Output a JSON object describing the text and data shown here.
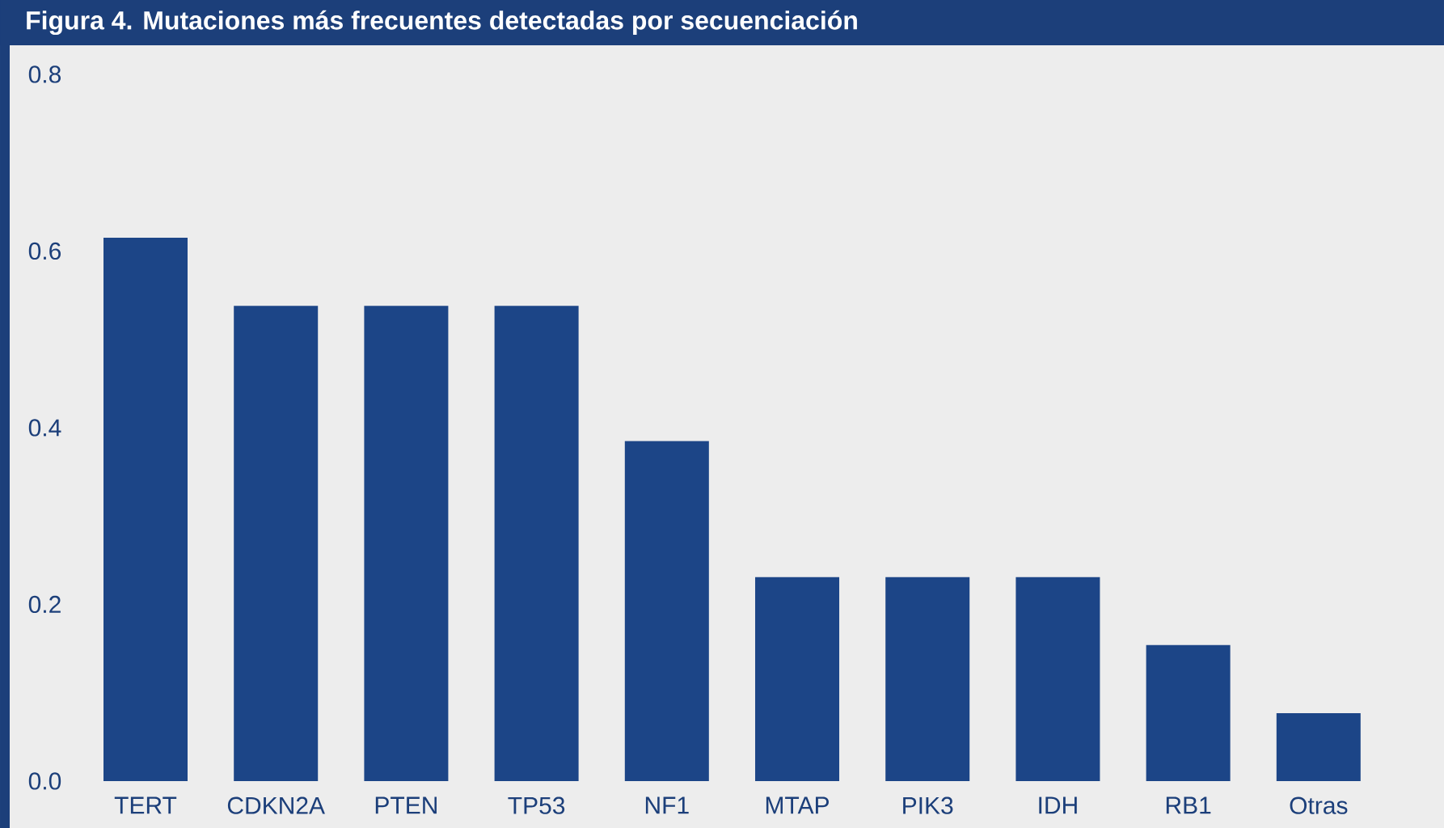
{
  "chart_data": {
    "type": "bar",
    "title": "Figura 4. Mutaciones más frecuentes detectadas por secuenciación",
    "categories": [
      "TERT",
      "CDKN2A",
      "PTEN",
      "TP53",
      "NF1",
      "MTAP",
      "PIK3",
      "IDH",
      "RB1",
      "Otras"
    ],
    "values": [
      0.615,
      0.538,
      0.538,
      0.538,
      0.385,
      0.231,
      0.231,
      0.231,
      0.154,
      0.077
    ],
    "color": "#1c4587",
    "ylim": [
      0,
      0.8
    ],
    "yticks": [
      {
        "value": 0,
        "label": "0.0"
      },
      0.2,
      0.4,
      0.6,
      0.8
    ]
  }
}
